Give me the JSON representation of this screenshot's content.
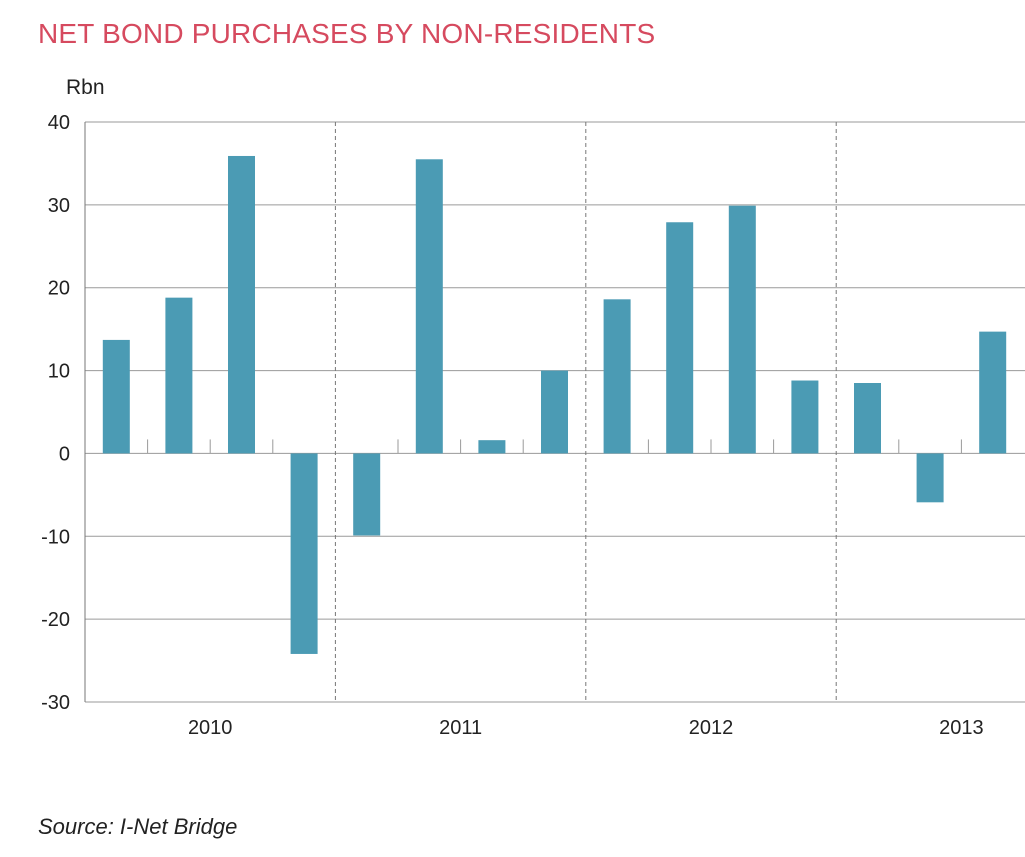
{
  "colors": {
    "title": "#d64a5f",
    "bar": "#4b9bb4",
    "grid": "#9a9a9a",
    "axis": "#777777",
    "text": "#222222"
  },
  "chart_data": {
    "type": "bar",
    "title": "NET BOND PURCHASES BY NON-RESIDENTS",
    "unit_label": "Rbn",
    "source": "Source: I-Net Bridge",
    "ylim": [
      -30,
      40
    ],
    "yticks": [
      40,
      30,
      20,
      10,
      0,
      -10,
      -20,
      -30
    ],
    "tick_labels": [
      "40",
      "30",
      "20",
      "10",
      "0",
      "-10",
      "-20",
      "-30"
    ],
    "groups": [
      "2010",
      "2011",
      "2012",
      "2013"
    ],
    "bars_per_group": 4,
    "values": [
      13.7,
      18.8,
      35.9,
      -24.2,
      -9.9,
      35.5,
      1.6,
      10.0,
      18.6,
      27.9,
      29.9,
      8.8,
      8.5,
      -5.9,
      14.7
    ],
    "grid": true,
    "legend": "none"
  }
}
